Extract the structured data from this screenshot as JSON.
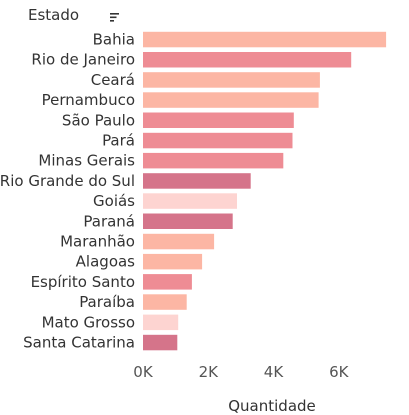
{
  "chart_data": {
    "type": "bar",
    "orientation": "horizontal",
    "title": "",
    "ylabel": "Estado",
    "xlabel": "Quantidade",
    "xlim": [
      0,
      7600
    ],
    "xticks": [
      0,
      2000,
      4000,
      6000
    ],
    "xtick_labels": [
      "0K",
      "2K",
      "4K",
      "6K"
    ],
    "grid": false,
    "sort_icon": "sort-descending-icon",
    "categories": [
      "Bahia",
      "Rio de Janeiro",
      "Ceará",
      "Pernambuco",
      "São Paulo",
      "Pará",
      "Minas Gerais",
      "Rio Grande do Sul",
      "Goiás",
      "Paraná",
      "Maranhão",
      "Alagoas",
      "Espírito Santo",
      "Paraíba",
      "Mato Grosso",
      "Santa Catarina"
    ],
    "values": [
      7450,
      6380,
      5420,
      5380,
      4620,
      4580,
      4300,
      3300,
      2880,
      2750,
      2180,
      1810,
      1500,
      1340,
      1080,
      1050
    ],
    "colors": [
      "#FCB6A4",
      "#EE8C94",
      "#FCB6A4",
      "#FCB6A4",
      "#EE8C94",
      "#EE8C94",
      "#EE8C94",
      "#D5748A",
      "#FDD4D1",
      "#D5748A",
      "#FCB6A4",
      "#FCB6A4",
      "#EE8C94",
      "#FCB6A4",
      "#FDD4D1",
      "#D5748A"
    ]
  }
}
